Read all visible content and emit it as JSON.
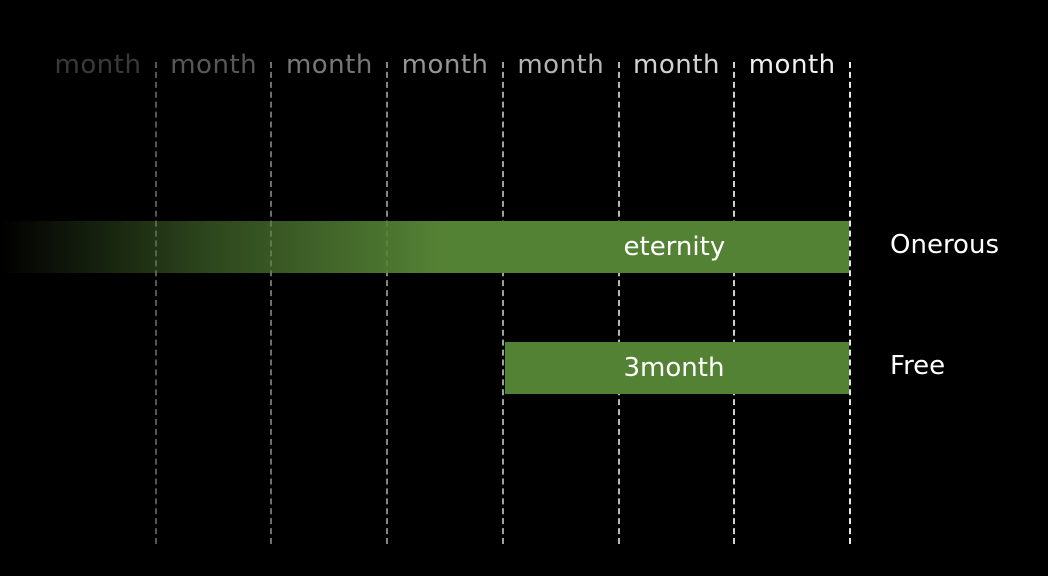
{
  "timeline": {
    "columns": [
      "month",
      "month",
      "month",
      "month",
      "month",
      "month",
      "month"
    ]
  },
  "rows": [
    {
      "name": "Onerous",
      "bar_label": "eternity",
      "start_column": 0,
      "end_column": 7,
      "fades_in": true
    },
    {
      "name": "Free",
      "bar_label": "3month",
      "start_column": 4,
      "end_column": 7,
      "fades_in": false
    }
  ],
  "colors": {
    "background": "#000000",
    "bar": "#548235",
    "divider_dim": "#5a5a5a",
    "divider_bright": "#e8e8e8"
  }
}
